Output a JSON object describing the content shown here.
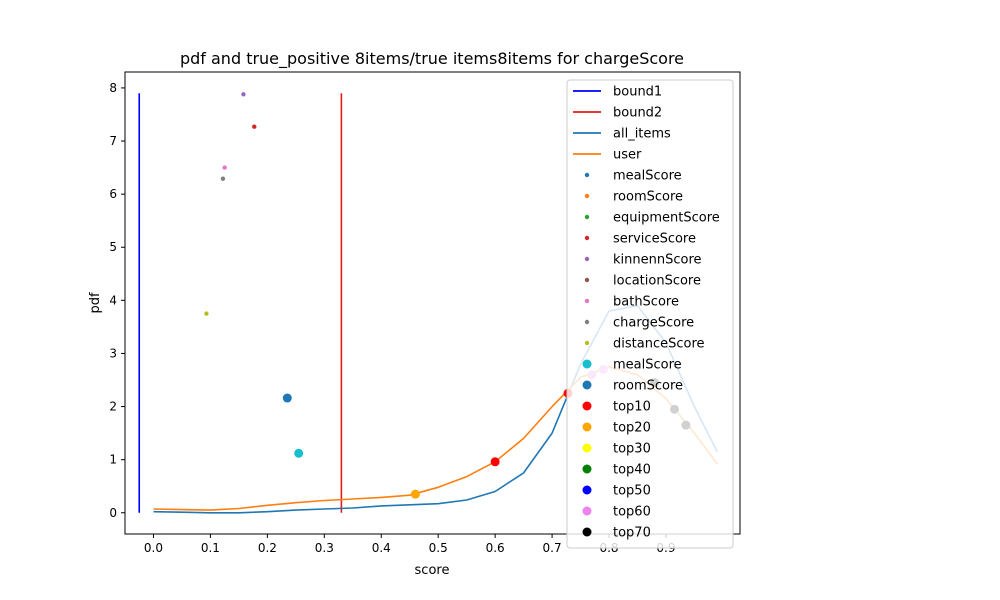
{
  "chart_data": {
    "type": "line",
    "title": "pdf and true_positive 8items/true items8items for chargeScore",
    "xlabel": "score",
    "ylabel": "pdf",
    "xlim": [
      -0.05,
      1.03
    ],
    "ylim": [
      -0.4,
      8.3
    ],
    "xticks": [
      0.0,
      0.1,
      0.2,
      0.3,
      0.4,
      0.5,
      0.6,
      0.7,
      0.8,
      0.9
    ],
    "xtick_labels": [
      "0.0",
      "0.1",
      "0.2",
      "0.3",
      "0.4",
      "0.5",
      "0.6",
      "0.7",
      "0.8",
      "0.9"
    ],
    "yticks": [
      0,
      1,
      2,
      3,
      4,
      5,
      6,
      7,
      8
    ],
    "ytick_labels": [
      "0",
      "1",
      "2",
      "3",
      "4",
      "5",
      "6",
      "7",
      "8"
    ],
    "legend_position": "upper-right",
    "bounds": [
      {
        "name": "bound1",
        "x": -0.025,
        "y": [
          0,
          7.9
        ],
        "color": "#0000ff"
      },
      {
        "name": "bound2",
        "x": 0.33,
        "y": [
          0,
          7.9
        ],
        "color": "#e41a1c"
      }
    ],
    "lines": [
      {
        "name": "all_items",
        "color": "#1f77b4",
        "x": [
          0.0,
          0.05,
          0.1,
          0.15,
          0.2,
          0.25,
          0.3,
          0.35,
          0.4,
          0.45,
          0.5,
          0.55,
          0.6,
          0.65,
          0.7,
          0.75,
          0.8,
          0.85,
          0.9,
          0.95,
          0.99
        ],
        "y": [
          0.02,
          0.01,
          0.0,
          0.0,
          0.02,
          0.05,
          0.07,
          0.09,
          0.13,
          0.15,
          0.17,
          0.24,
          0.4,
          0.75,
          1.5,
          2.8,
          3.8,
          3.9,
          3.2,
          2.0,
          1.15
        ]
      },
      {
        "name": "user",
        "color": "#ff7f0e",
        "x": [
          0.0,
          0.05,
          0.1,
          0.15,
          0.2,
          0.25,
          0.3,
          0.35,
          0.4,
          0.45,
          0.5,
          0.55,
          0.6,
          0.65,
          0.7,
          0.75,
          0.8,
          0.85,
          0.9,
          0.95,
          0.99
        ],
        "y": [
          0.07,
          0.06,
          0.05,
          0.08,
          0.14,
          0.19,
          0.23,
          0.26,
          0.29,
          0.33,
          0.48,
          0.68,
          0.96,
          1.4,
          2.0,
          2.55,
          2.75,
          2.6,
          2.15,
          1.5,
          0.92
        ]
      }
    ],
    "scatter": [
      {
        "name": "mealScore",
        "color": "#1f77b4",
        "size": "small",
        "points": []
      },
      {
        "name": "roomScore",
        "color": "#ff7f0e",
        "size": "small",
        "points": []
      },
      {
        "name": "equipmentScore",
        "color": "#2ca02c",
        "size": "small",
        "points": []
      },
      {
        "name": "serviceScore",
        "color": "#d62728",
        "size": "small",
        "points": [
          [
            0.177,
            7.27
          ]
        ]
      },
      {
        "name": "kinnennScore",
        "color": "#9467bd",
        "size": "small",
        "points": [
          [
            0.158,
            7.88
          ]
        ]
      },
      {
        "name": "locationScore",
        "color": "#8c564b",
        "size": "small",
        "points": []
      },
      {
        "name": "bathScore",
        "color": "#e377c2",
        "size": "small",
        "points": [
          [
            0.125,
            6.5
          ]
        ]
      },
      {
        "name": "chargeScore",
        "color": "#7f7f7f",
        "size": "small",
        "points": [
          [
            0.122,
            6.29
          ]
        ]
      },
      {
        "name": "distanceScore",
        "color": "#bcbd22",
        "size": "small",
        "points": [
          [
            0.093,
            3.75
          ]
        ]
      },
      {
        "name": "mealScore",
        "color": "#17becf",
        "size": "large",
        "points": [
          [
            0.255,
            1.12
          ]
        ]
      },
      {
        "name": "roomScore",
        "color": "#1f77b4",
        "size": "large",
        "points": [
          [
            0.235,
            2.16
          ]
        ]
      },
      {
        "name": "top10",
        "color": "#ff0000",
        "size": "large",
        "points": [
          [
            0.6,
            0.96
          ],
          [
            0.728,
            2.25
          ]
        ]
      },
      {
        "name": "top20",
        "color": "#ffa500",
        "size": "large",
        "points": [
          [
            0.46,
            0.35
          ]
        ]
      },
      {
        "name": "top30",
        "color": "#ffff00",
        "size": "large",
        "points": []
      },
      {
        "name": "top40",
        "color": "#008000",
        "size": "large",
        "points": []
      },
      {
        "name": "top50",
        "color": "#0000ff",
        "size": "large",
        "points": []
      },
      {
        "name": "top60",
        "color": "#ee82ee",
        "size": "large",
        "points": [
          [
            0.77,
            2.6
          ],
          [
            0.79,
            2.7
          ]
        ]
      },
      {
        "name": "top70",
        "color": "#000000",
        "size": "large",
        "points": [
          [
            0.88,
            2.45
          ],
          [
            0.915,
            1.95
          ],
          [
            0.935,
            1.65
          ]
        ]
      }
    ]
  }
}
